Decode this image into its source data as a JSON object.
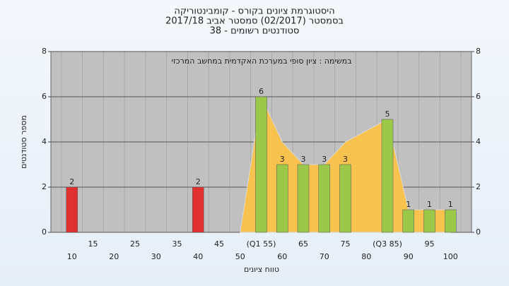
{
  "chart_data": {
    "type": "bar",
    "title": [
      "היסטוגרמת ציונים בקורס - קומבינטוריקה",
      "בסמסטר  (02/2017)  סמסטר אביב 2017/18",
      "סטודנטים רשומים - 38"
    ],
    "annotation": "במשימה : ציון סופי במערכת האקדמית במחשב המרכזי",
    "x_label": "טווח ציונים",
    "y_label": "מספר סטודנטים",
    "categories": [
      "10",
      "15",
      "20",
      "25",
      "30",
      "35",
      "40",
      "45",
      "50",
      "(Q1 55)",
      "60",
      "65",
      "70",
      "75",
      "80",
      "(Q3 85)",
      "90",
      "95",
      "100"
    ],
    "values": [
      2,
      0,
      0,
      0,
      0,
      0,
      2,
      0,
      0,
      6,
      3,
      3,
      3,
      3,
      0,
      5,
      1,
      1,
      1
    ],
    "colors": [
      "#e03030",
      "#9cc84a",
      "#9cc84a",
      "#9cc84a",
      "#9cc84a",
      "#9cc84a",
      "#e03030",
      "#9cc84a",
      "#9cc84a",
      "#9cc84a",
      "#9cc84a",
      "#9cc84a",
      "#9cc84a",
      "#9cc84a",
      "#9cc84a",
      "#9cc84a",
      "#9cc84a",
      "#9cc84a",
      "#9cc84a"
    ],
    "area": {
      "color": "#f8c24e",
      "values": [
        null,
        null,
        null,
        null,
        null,
        null,
        null,
        null,
        0,
        6,
        4,
        3,
        3,
        4,
        4.5,
        5,
        1,
        1,
        1
      ]
    },
    "ylim": [
      0,
      8
    ],
    "yticks": [
      0,
      2,
      4,
      6,
      8
    ],
    "y2lim": [
      0,
      8
    ],
    "y2ticks": [
      0,
      2,
      4,
      6,
      8
    ],
    "grid": true
  }
}
